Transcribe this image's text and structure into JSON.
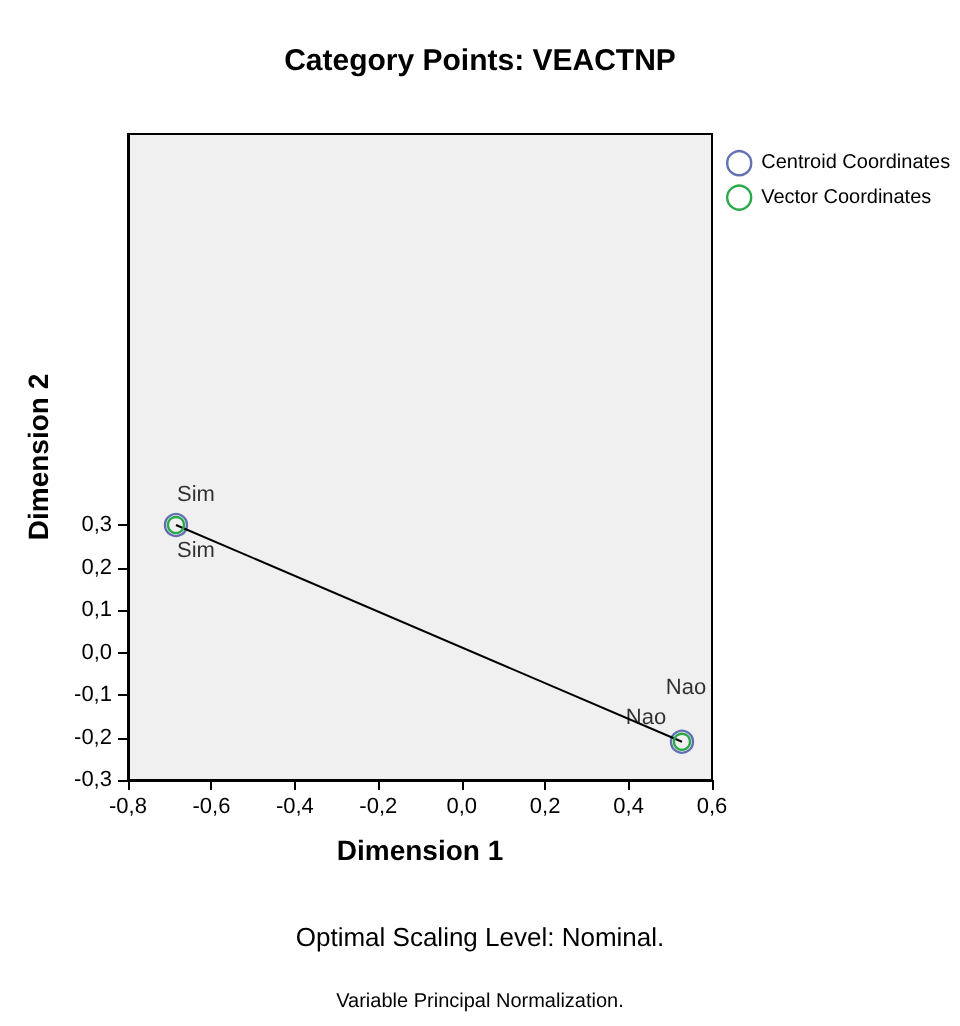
{
  "chart_data": {
    "type": "scatter",
    "title": "Category Points: VEACTNP",
    "xlabel": "Dimension 1",
    "ylabel": "Dimension 2",
    "series": [
      {
        "name": "Centroid Coordinates",
        "color": "#3d4fa3",
        "values": [
          0.3,
          -0.21
        ]
      },
      {
        "name": "Vector Coordinates",
        "type": "line",
        "color": "#2aa84a",
        "values": [
          0.3,
          -0.21
        ]
      }
    ],
    "x": [
      -0.685,
      0.528
    ],
    "xlim": [
      -0.8,
      0.6
    ],
    "ylim": [
      -0.3,
      1.22
    ],
    "xticks": [
      {
        "value": -0.8,
        "label": "-0,8"
      },
      {
        "value": -0.6,
        "label": "-0,6"
      },
      {
        "value": -0.4,
        "label": "-0,4"
      },
      {
        "value": -0.2,
        "label": "-0,2"
      },
      {
        "value": 0,
        "label": "0,0"
      },
      {
        "value": 0.2,
        "label": "0,2"
      },
      {
        "value": 0.4,
        "label": "0,4"
      },
      {
        "value": 0.6,
        "label": "0,6"
      }
    ],
    "yticks": [
      {
        "value": -0.3,
        "label": "-0,3"
      },
      {
        "value": -0.2,
        "label": "-0,2"
      },
      {
        "value": -0.1,
        "label": "-0,1"
      },
      {
        "value": 0,
        "label": "0,0"
      },
      {
        "value": 0.1,
        "label": "0,1"
      },
      {
        "value": 0.2,
        "label": "0,2"
      },
      {
        "value": 0.3,
        "label": "0,3"
      }
    ],
    "annotations": [
      "Sim",
      "Sim",
      "Nao",
      "Nao",
      "Optimal Scaling Level: Nominal.",
      "Variable Principal Normalization."
    ],
    "marker": "circle",
    "line_style": "solid",
    "grid": false,
    "legend": "top right"
  }
}
